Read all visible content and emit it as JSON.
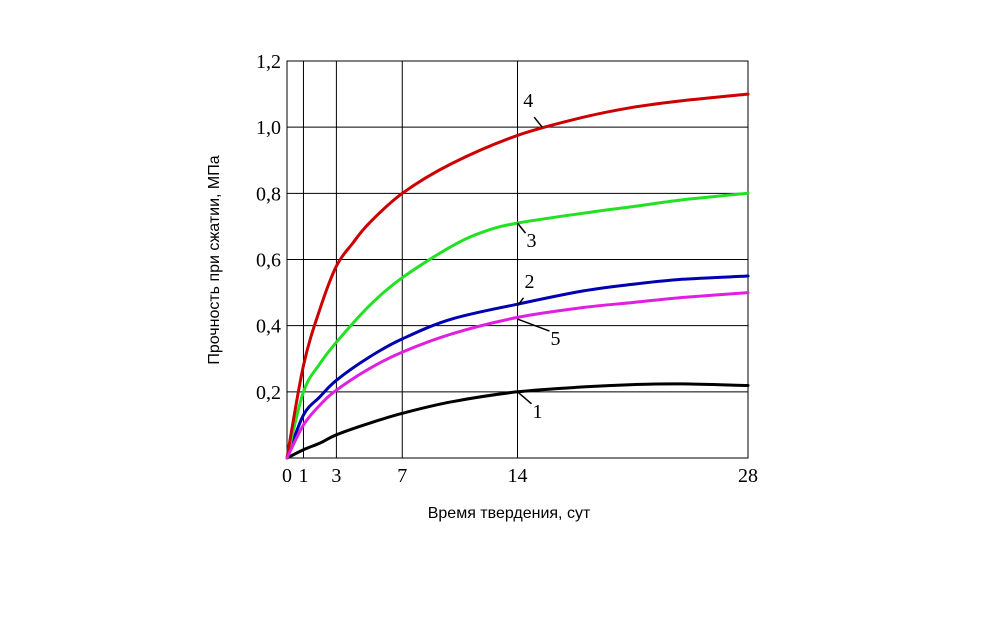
{
  "chart_data": {
    "type": "line",
    "xlabel": "Время твердения, сут",
    "ylabel": "Прочность при сжатии, МПа",
    "xlim": [
      0,
      28
    ],
    "ylim": [
      0,
      1.2
    ],
    "grid": true,
    "x_ticks": [
      0,
      1,
      3,
      7,
      14,
      28
    ],
    "x_tick_labels": [
      "0",
      "1",
      "3",
      "7",
      "14",
      "28"
    ],
    "y_ticks": [
      0.2,
      0.4,
      0.6,
      0.8,
      1.0,
      1.2
    ],
    "y_tick_labels": [
      "0,2",
      "0,4",
      "0,6",
      "0,8",
      "1,0",
      "1,2"
    ],
    "series": [
      {
        "name": "1",
        "color": "#000000",
        "label_anchor": [
          14,
          0.2
        ],
        "points": [
          [
            0,
            0
          ],
          [
            1,
            0.025
          ],
          [
            2,
            0.045
          ],
          [
            3,
            0.07
          ],
          [
            5,
            0.105
          ],
          [
            7,
            0.135
          ],
          [
            10,
            0.17
          ],
          [
            14,
            0.2
          ],
          [
            18,
            0.215
          ],
          [
            21,
            0.222
          ],
          [
            24,
            0.224
          ],
          [
            28,
            0.219
          ]
        ]
      },
      {
        "name": "2",
        "color": "#0000b0",
        "label_anchor": [
          14,
          0.46
        ],
        "points": [
          [
            0,
            0
          ],
          [
            1,
            0.13
          ],
          [
            2,
            0.185
          ],
          [
            3,
            0.235
          ],
          [
            5,
            0.305
          ],
          [
            7,
            0.36
          ],
          [
            10,
            0.42
          ],
          [
            14,
            0.465
          ],
          [
            18,
            0.505
          ],
          [
            21,
            0.525
          ],
          [
            24,
            0.54
          ],
          [
            28,
            0.55
          ]
        ]
      },
      {
        "name": "3",
        "color": "#22e022",
        "label_anchor": [
          14,
          0.71
        ],
        "points": [
          [
            0,
            0
          ],
          [
            1,
            0.2
          ],
          [
            2,
            0.285
          ],
          [
            3,
            0.35
          ],
          [
            5,
            0.46
          ],
          [
            7,
            0.545
          ],
          [
            10,
            0.64
          ],
          [
            12,
            0.685
          ],
          [
            14,
            0.71
          ],
          [
            18,
            0.74
          ],
          [
            21,
            0.76
          ],
          [
            24,
            0.78
          ],
          [
            28,
            0.8
          ]
        ]
      },
      {
        "name": "4",
        "color": "#cc0000",
        "label_anchor": [
          15.5,
          1.0
        ],
        "points": [
          [
            0,
            0
          ],
          [
            1,
            0.28
          ],
          [
            2,
            0.45
          ],
          [
            3,
            0.58
          ],
          [
            4,
            0.65
          ],
          [
            5,
            0.71
          ],
          [
            7,
            0.8
          ],
          [
            10,
            0.89
          ],
          [
            14,
            0.975
          ],
          [
            18,
            1.03
          ],
          [
            21,
            1.06
          ],
          [
            24,
            1.08
          ],
          [
            28,
            1.1
          ]
        ]
      },
      {
        "name": "5",
        "color": "#e020e0",
        "label_anchor": [
          14,
          0.42
        ],
        "points": [
          [
            0,
            0
          ],
          [
            1,
            0.1
          ],
          [
            2,
            0.16
          ],
          [
            3,
            0.205
          ],
          [
            5,
            0.27
          ],
          [
            7,
            0.32
          ],
          [
            10,
            0.375
          ],
          [
            14,
            0.425
          ],
          [
            18,
            0.455
          ],
          [
            21,
            0.47
          ],
          [
            24,
            0.485
          ],
          [
            28,
            0.5
          ]
        ]
      }
    ]
  }
}
